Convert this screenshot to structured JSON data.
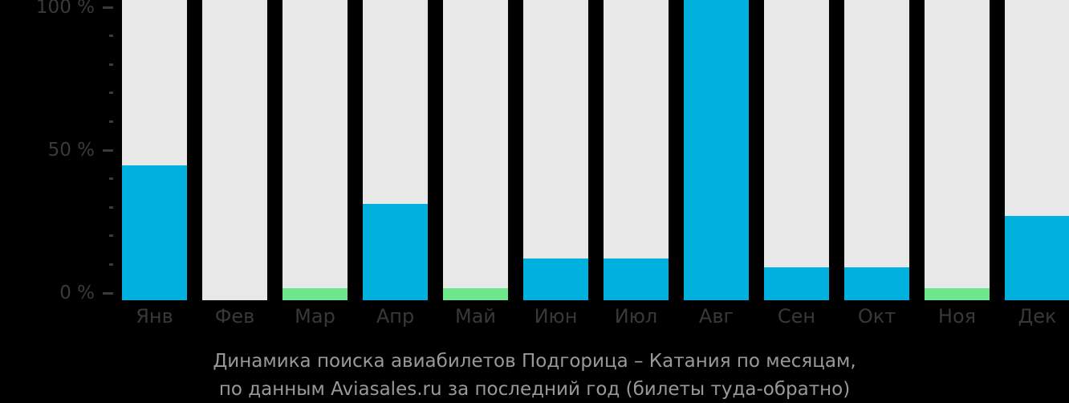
{
  "title": {
    "line1": "Динамика поиска авиабилетов Подгорица – Катания по месяцам,",
    "line2": "по данным Aviasales.ru за последний год (билеты туда-обратно)"
  },
  "colors": {
    "background": "#000000",
    "bar_track": "#e8e8e8",
    "bar_blue": "#00b1e0",
    "bar_green": "#6ee88c",
    "axis_text": "#3a3a3a",
    "title_text": "#999999"
  },
  "y_axis": {
    "major_ticks": [
      {
        "value": 100,
        "label": "100 %"
      },
      {
        "value": 50,
        "label": "50 %"
      },
      {
        "value": 0,
        "label": "0 %"
      }
    ],
    "minor_ticks": [
      90,
      80,
      70,
      60,
      40,
      30,
      20,
      10
    ],
    "range": [
      0,
      100
    ]
  },
  "chart_data": {
    "type": "bar",
    "title": "Динамика поиска авиабилетов Подгорица – Катания по месяцам, по данным Aviasales.ru за последний год (билеты туда-обратно)",
    "xlabel": "",
    "ylabel": "",
    "ylim": [
      0,
      100
    ],
    "grid": false,
    "legend": false,
    "categories": [
      "Янв",
      "Фев",
      "Мар",
      "Апр",
      "Май",
      "Июн",
      "Июл",
      "Авг",
      "Сен",
      "Окт",
      "Ноя",
      "Дек"
    ],
    "values": [
      45,
      0,
      4,
      32,
      4,
      14,
      14,
      100,
      11,
      11,
      4,
      28
    ],
    "bar_colors": [
      "blue",
      "blue",
      "green",
      "blue",
      "green",
      "blue",
      "blue",
      "blue",
      "blue",
      "blue",
      "green",
      "blue"
    ],
    "units": "%"
  }
}
